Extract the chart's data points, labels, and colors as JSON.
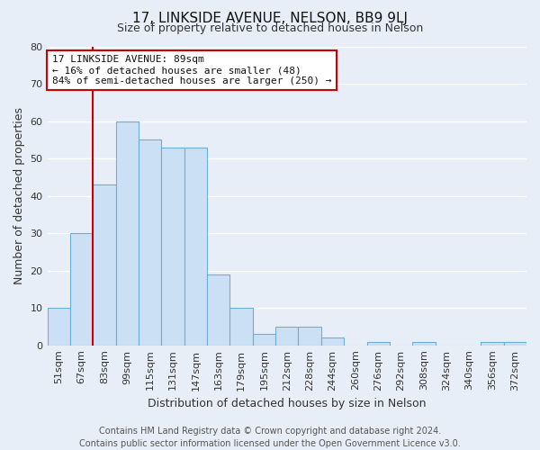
{
  "title": "17, LINKSIDE AVENUE, NELSON, BB9 9LJ",
  "subtitle": "Size of property relative to detached houses in Nelson",
  "xlabel": "Distribution of detached houses by size in Nelson",
  "ylabel": "Number of detached properties",
  "bar_labels": [
    "51sqm",
    "67sqm",
    "83sqm",
    "99sqm",
    "115sqm",
    "131sqm",
    "147sqm",
    "163sqm",
    "179sqm",
    "195sqm",
    "212sqm",
    "228sqm",
    "244sqm",
    "260sqm",
    "276sqm",
    "292sqm",
    "308sqm",
    "324sqm",
    "340sqm",
    "356sqm",
    "372sqm"
  ],
  "bar_values": [
    10,
    30,
    43,
    60,
    55,
    53,
    53,
    19,
    10,
    3,
    5,
    5,
    2,
    0,
    1,
    0,
    1,
    0,
    0,
    1,
    1
  ],
  "bar_color": "#cce0f5",
  "bar_edge_color": "#6baed6",
  "vline_x_index": 2,
  "vline_color": "#cc0000",
  "annotation_title": "17 LINKSIDE AVENUE: 89sqm",
  "annotation_line1": "← 16% of detached houses are smaller (48)",
  "annotation_line2": "84% of semi-detached houses are larger (250) →",
  "annotation_box_facecolor": "white",
  "annotation_box_edgecolor": "#cc0000",
  "ylim": [
    0,
    80
  ],
  "yticks": [
    0,
    10,
    20,
    30,
    40,
    50,
    60,
    70,
    80
  ],
  "footer_line1": "Contains HM Land Registry data © Crown copyright and database right 2024.",
  "footer_line2": "Contains public sector information licensed under the Open Government Licence v3.0.",
  "bg_color": "#e8eef7",
  "plot_bg_color": "#e8eef7",
  "grid_color": "white",
  "title_fontsize": 11,
  "subtitle_fontsize": 9,
  "ylabel_fontsize": 9,
  "xlabel_fontsize": 9,
  "tick_fontsize": 8,
  "annot_fontsize": 8,
  "footer_fontsize": 7
}
